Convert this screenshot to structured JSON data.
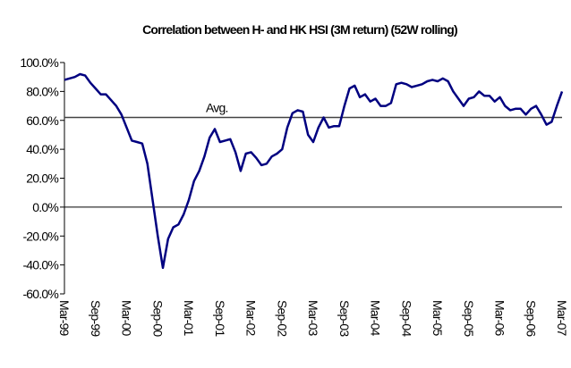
{
  "chart_data": {
    "type": "line",
    "title": "Correlation between H- and HK HSI (3M return) (52W rolling)",
    "categories": [
      "Mar-99",
      null,
      null,
      null,
      null,
      null,
      "Sep-99",
      null,
      null,
      null,
      null,
      null,
      "Mar-00",
      null,
      null,
      null,
      null,
      null,
      "Sep-00",
      null,
      null,
      null,
      null,
      null,
      "Mar-01",
      null,
      null,
      null,
      null,
      null,
      "Sep-01",
      null,
      null,
      null,
      null,
      null,
      "Mar-02",
      null,
      null,
      null,
      null,
      null,
      "Sep-02",
      null,
      null,
      null,
      null,
      null,
      "Mar-03",
      null,
      null,
      null,
      null,
      null,
      "Sep-03",
      null,
      null,
      null,
      null,
      null,
      "Mar-04",
      null,
      null,
      null,
      null,
      null,
      "Sep-04",
      null,
      null,
      null,
      null,
      null,
      "Mar-05",
      null,
      null,
      null,
      null,
      null,
      "Sep-05",
      null,
      null,
      null,
      null,
      null,
      "Mar-06",
      null,
      null,
      null,
      null,
      null,
      "Sep-06",
      null,
      null,
      null,
      null,
      null,
      "Mar-07"
    ],
    "series": [
      {
        "color": "#000080",
        "values": [
          88,
          89,
          90,
          92,
          91,
          86,
          82,
          78,
          78,
          74,
          70,
          64,
          55,
          46,
          45,
          44,
          30,
          5,
          -20,
          -42,
          -22,
          -14,
          -12,
          -5,
          5,
          18,
          25,
          35,
          48,
          54,
          45,
          46,
          47,
          38,
          25,
          37,
          38,
          34,
          29,
          30,
          35,
          37,
          40,
          55,
          65,
          67,
          66,
          50,
          45,
          55,
          62,
          55,
          56,
          56,
          70,
          82,
          84,
          76,
          78,
          73,
          75,
          70,
          70,
          72,
          85,
          86,
          85,
          83,
          84,
          85,
          87,
          88,
          87,
          89,
          87,
          80,
          75,
          70,
          75,
          76,
          80,
          77,
          77,
          73,
          76,
          70,
          67,
          68,
          68,
          64,
          68,
          70,
          64,
          57,
          59,
          70,
          80
        ]
      }
    ],
    "average": {
      "label": "Avg.",
      "value": 62,
      "color": "#444444"
    },
    "ylim": [
      -60,
      100
    ],
    "yticks": [
      {
        "value": -60,
        "label": "-60.0%"
      },
      {
        "value": -40,
        "label": "-40.0%"
      },
      {
        "value": -20,
        "label": "-20.0%"
      },
      {
        "value": 0,
        "label": "0.0%"
      },
      {
        "value": 20,
        "label": "20.0%"
      },
      {
        "value": 40,
        "label": "40.0%"
      },
      {
        "value": 60,
        "label": "60.0%"
      },
      {
        "value": 80,
        "label": "80.0%"
      },
      {
        "value": 100,
        "label": "100.0%"
      }
    ],
    "grid": false
  }
}
